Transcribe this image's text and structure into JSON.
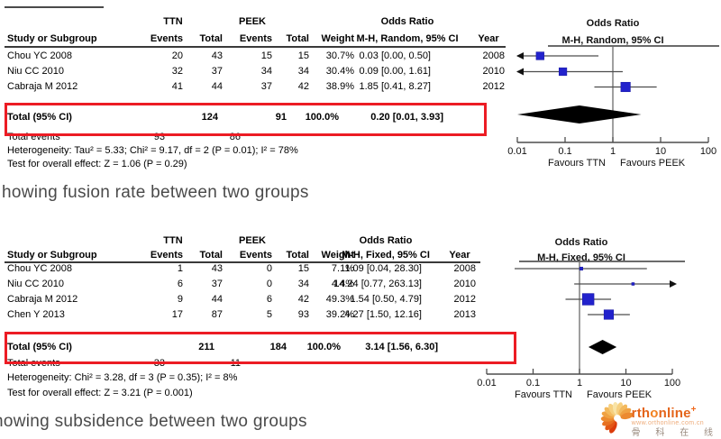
{
  "panels": [
    {
      "name": "fusion-rate",
      "caption": "howing fusion rate between two groups",
      "plot_title1": "Odds Ratio",
      "plot_title2": "M-H, Random, 95% CI",
      "table": {
        "group1_label": "TTN",
        "group2_label": "PEEK",
        "col_study": "Study or Subgroup",
        "col_events": "Events",
        "col_total": "Total",
        "col_weight": "Weight",
        "col_or_title": "Odds Ratio",
        "col_method": "M-H, Random, 95% CI",
        "col_year": "Year",
        "rows": [
          {
            "study": "Chou YC 2008",
            "e1": "20",
            "t1": "43",
            "e2": "15",
            "t2": "15",
            "weight": "30.7%",
            "ci": "0.03 [0.00, 0.50]",
            "year": "2008"
          },
          {
            "study": "Niu CC 2010",
            "e1": "32",
            "t1": "37",
            "e2": "34",
            "t2": "34",
            "weight": "30.4%",
            "ci": "0.09 [0.00, 1.61]",
            "year": "2010"
          },
          {
            "study": "Cabraja M 2012",
            "e1": "41",
            "t1": "44",
            "e2": "37",
            "t2": "42",
            "weight": "38.9%",
            "ci": "1.85 [0.41, 8.27]",
            "year": "2012"
          }
        ],
        "total_label": "Total (95% CI)",
        "total_t1": "124",
        "total_t2": "91",
        "total_weight": "100.0%",
        "total_ci": "0.20 [0.01, 3.93]",
        "total_events_label": "Total events",
        "total_events_1": "93",
        "total_events_2": "86",
        "heterogeneity": "Heterogeneity: Tau² = 5.33; Chi² = 9.17, df = 2 (P = 0.01); I² = 78%",
        "overall_effect": "Test for overall effect: Z = 1.06 (P = 0.29)"
      }
    },
    {
      "name": "subsidence",
      "caption": "howing subsidence between two groups",
      "plot_title1": "Odds Ratio",
      "plot_title2": "M-H, Fixed, 95% CI",
      "table": {
        "group1_label": "TTN",
        "group2_label": "PEEK",
        "col_study": "Study or Subgroup",
        "col_events": "Events",
        "col_total": "Total",
        "col_weight": "Weight",
        "col_or_title": "Odds Ratio",
        "col_method": "M-H, Fixed, 95% CI",
        "col_year": "Year",
        "rows": [
          {
            "study": "Chou YC 2008",
            "e1": "1",
            "t1": "43",
            "e2": "0",
            "t2": "15",
            "weight": "7.1%",
            "ci": "1.09 [0.04, 28.30]",
            "year": "2008"
          },
          {
            "study": "Niu CC 2010",
            "e1": "6",
            "t1": "37",
            "e2": "0",
            "t2": "34",
            "weight": "4.4%",
            "ci": "14.24 [0.77, 263.13]",
            "year": "2010"
          },
          {
            "study": "Cabraja M 2012",
            "e1": "9",
            "t1": "44",
            "e2": "6",
            "t2": "42",
            "weight": "49.3%",
            "ci": "1.54 [0.50, 4.79]",
            "year": "2012"
          },
          {
            "study": "Chen Y 2013",
            "e1": "17",
            "t1": "87",
            "e2": "5",
            "t2": "93",
            "weight": "39.2%",
            "ci": "4.27 [1.50, 12.16]",
            "year": "2013"
          }
        ],
        "total_label": "Total (95% CI)",
        "total_t1": "211",
        "total_t2": "184",
        "total_weight": "100.0%",
        "total_ci": "3.14 [1.56, 6.30]",
        "total_events_label": "Total events",
        "total_events_1": "33",
        "total_events_2": "11",
        "heterogeneity": "Heterogeneity: Chi² = 3.28, df = 3 (P = 0.35); I² = 8%",
        "overall_effect": "Test for overall effect: Z = 3.21 (P = 0.001)"
      }
    }
  ],
  "chart_data": [
    {
      "type": "forest",
      "title": "Odds Ratio",
      "subtitle": "M-H, Random, 95% CI",
      "comparison": "TTN vs PEEK, fusion rate",
      "x_scale": "log10",
      "x_range": [
        0.01,
        100
      ],
      "x_ticks": [
        0.01,
        0.1,
        1,
        10,
        100
      ],
      "favours_left": "Favours TTN",
      "favours_right": "Favours PEEK",
      "studies": [
        {
          "name": "Chou YC 2008",
          "or": 0.03,
          "ci_low": 0.0,
          "ci_high": 0.5,
          "weight_pct": 30.7,
          "year": 2008
        },
        {
          "name": "Niu CC 2010",
          "or": 0.09,
          "ci_low": 0.0,
          "ci_high": 1.61,
          "weight_pct": 30.4,
          "year": 2010
        },
        {
          "name": "Cabraja M 2012",
          "or": 1.85,
          "ci_low": 0.41,
          "ci_high": 8.27,
          "weight_pct": 38.9,
          "year": 2012
        }
      ],
      "total": {
        "label": "Total (95% CI)",
        "or": 0.2,
        "ci_low": 0.01,
        "ci_high": 3.93,
        "weight_pct": 100.0
      }
    },
    {
      "type": "forest",
      "title": "Odds Ratio",
      "subtitle": "M-H, Fixed, 95% CI",
      "comparison": "TTN vs PEEK, subsidence",
      "x_scale": "log10",
      "x_range": [
        0.01,
        100
      ],
      "x_ticks": [
        0.01,
        0.1,
        1,
        10,
        100
      ],
      "favours_left": "Favours TTN",
      "favours_right": "Favours PEEK",
      "studies": [
        {
          "name": "Chou YC 2008",
          "or": 1.09,
          "ci_low": 0.04,
          "ci_high": 28.3,
          "weight_pct": 7.1,
          "year": 2008
        },
        {
          "name": "Niu CC 2010",
          "or": 14.24,
          "ci_low": 0.77,
          "ci_high": 263.13,
          "weight_pct": 4.4,
          "year": 2010
        },
        {
          "name": "Cabraja M 2012",
          "or": 1.54,
          "ci_low": 0.5,
          "ci_high": 4.79,
          "weight_pct": 49.3,
          "year": 2012
        },
        {
          "name": "Chen Y 2013",
          "or": 4.27,
          "ci_low": 1.5,
          "ci_high": 12.16,
          "weight_pct": 39.2,
          "year": 2013
        }
      ],
      "total": {
        "label": "Total (95% CI)",
        "or": 3.14,
        "ci_low": 1.56,
        "ci_high": 6.3,
        "weight_pct": 100.0
      }
    }
  ],
  "watermark": {
    "brand_prefix": "rth",
    "brand_o": "o",
    "brand_suffix": "nline",
    "plus": "+",
    "url": "www.orthonline.com.cn",
    "chinese": "骨 科 在 线"
  },
  "colors": {
    "marker_blue": "#2222cc",
    "diamond_black": "#000000",
    "highlight_red": "#ec1c24",
    "line_gray": "#4d4d4d",
    "caption_gray": "#4a4a4a",
    "brand_orange": "#e4641a"
  }
}
